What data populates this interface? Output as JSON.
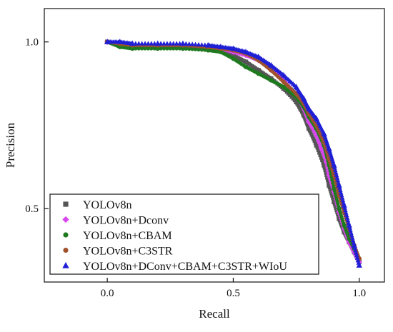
{
  "chart_data": {
    "type": "scatter",
    "title": "",
    "xlabel": "Recall",
    "ylabel": "Precision",
    "xlim": [
      -0.25,
      1.1
    ],
    "ylim": [
      0.28,
      1.1
    ],
    "x_ticks": [
      0.0,
      0.5,
      1.0
    ],
    "y_ticks": [
      0.5,
      1.0
    ],
    "x_tick_labels": [
      "0.0",
      "0.5",
      "1.0"
    ],
    "y_tick_labels": [
      "0.5",
      "1.0"
    ],
    "grid": false,
    "legend_position": "bottom-left",
    "series": [
      {
        "name": "YOLOv8n",
        "color": "#555555",
        "marker": "square",
        "x": [
          0.0,
          0.05,
          0.1,
          0.2,
          0.3,
          0.4,
          0.45,
          0.5,
          0.55,
          0.6,
          0.65,
          0.7,
          0.75,
          0.78,
          0.8,
          0.83,
          0.86,
          0.88,
          0.9,
          0.92,
          0.94,
          0.96,
          0.98,
          1.0
        ],
        "y": [
          1.0,
          0.99,
          0.985,
          0.985,
          0.985,
          0.98,
          0.975,
          0.96,
          0.94,
          0.915,
          0.89,
          0.86,
          0.82,
          0.78,
          0.74,
          0.69,
          0.63,
          0.57,
          0.52,
          0.47,
          0.43,
          0.4,
          0.37,
          0.34
        ]
      },
      {
        "name": "YOLOv8n+Dconv",
        "color": "#d946ef",
        "marker": "diamond",
        "x": [
          0.0,
          0.05,
          0.1,
          0.2,
          0.3,
          0.4,
          0.45,
          0.5,
          0.55,
          0.6,
          0.65,
          0.7,
          0.75,
          0.78,
          0.8,
          0.83,
          0.85,
          0.87,
          0.88,
          0.9,
          0.92,
          0.94,
          0.96,
          0.98,
          1.0
        ],
        "y": [
          1.0,
          0.995,
          0.99,
          0.99,
          0.99,
          0.985,
          0.98,
          0.97,
          0.96,
          0.945,
          0.92,
          0.885,
          0.84,
          0.8,
          0.76,
          0.72,
          0.68,
          0.64,
          0.6,
          0.55,
          0.49,
          0.44,
          0.4,
          0.37,
          0.34
        ]
      },
      {
        "name": "YOLOv8n+CBAM",
        "color": "#1f7a1f",
        "marker": "circle",
        "x": [
          0.0,
          0.05,
          0.1,
          0.2,
          0.3,
          0.4,
          0.45,
          0.5,
          0.55,
          0.6,
          0.65,
          0.7,
          0.75,
          0.78,
          0.8,
          0.83,
          0.86,
          0.88,
          0.9,
          0.92,
          0.94,
          0.96,
          0.98,
          1.0
        ],
        "y": [
          1.0,
          0.985,
          0.98,
          0.98,
          0.98,
          0.975,
          0.97,
          0.95,
          0.925,
          0.905,
          0.885,
          0.865,
          0.835,
          0.805,
          0.775,
          0.74,
          0.69,
          0.63,
          0.56,
          0.5,
          0.45,
          0.41,
          0.38,
          0.35
        ]
      },
      {
        "name": "YOLOv8n+C3STR",
        "color": "#a0522d",
        "marker": "circle",
        "x": [
          0.0,
          0.05,
          0.1,
          0.2,
          0.3,
          0.4,
          0.45,
          0.5,
          0.55,
          0.6,
          0.65,
          0.7,
          0.75,
          0.78,
          0.8,
          0.83,
          0.86,
          0.88,
          0.9,
          0.92,
          0.94,
          0.96,
          0.98,
          1.0
        ],
        "y": [
          1.0,
          0.995,
          0.99,
          0.99,
          0.99,
          0.985,
          0.98,
          0.975,
          0.965,
          0.945,
          0.915,
          0.88,
          0.845,
          0.815,
          0.785,
          0.75,
          0.7,
          0.65,
          0.6,
          0.54,
          0.49,
          0.44,
          0.39,
          0.35
        ]
      },
      {
        "name": "YOLOv8n+DConv+CBAM+C3STR+WIoU",
        "color": "#1f1fd6",
        "marker": "triangle",
        "x": [
          0.0,
          0.05,
          0.1,
          0.2,
          0.3,
          0.4,
          0.45,
          0.5,
          0.55,
          0.6,
          0.65,
          0.7,
          0.75,
          0.78,
          0.8,
          0.83,
          0.86,
          0.88,
          0.9,
          0.92,
          0.94,
          0.96,
          0.98,
          1.0
        ],
        "y": [
          1.0,
          1.0,
          0.995,
          0.995,
          0.995,
          0.99,
          0.985,
          0.98,
          0.97,
          0.955,
          0.93,
          0.9,
          0.865,
          0.83,
          0.8,
          0.77,
          0.725,
          0.68,
          0.63,
          0.57,
          0.51,
          0.45,
          0.39,
          0.33
        ]
      }
    ]
  }
}
